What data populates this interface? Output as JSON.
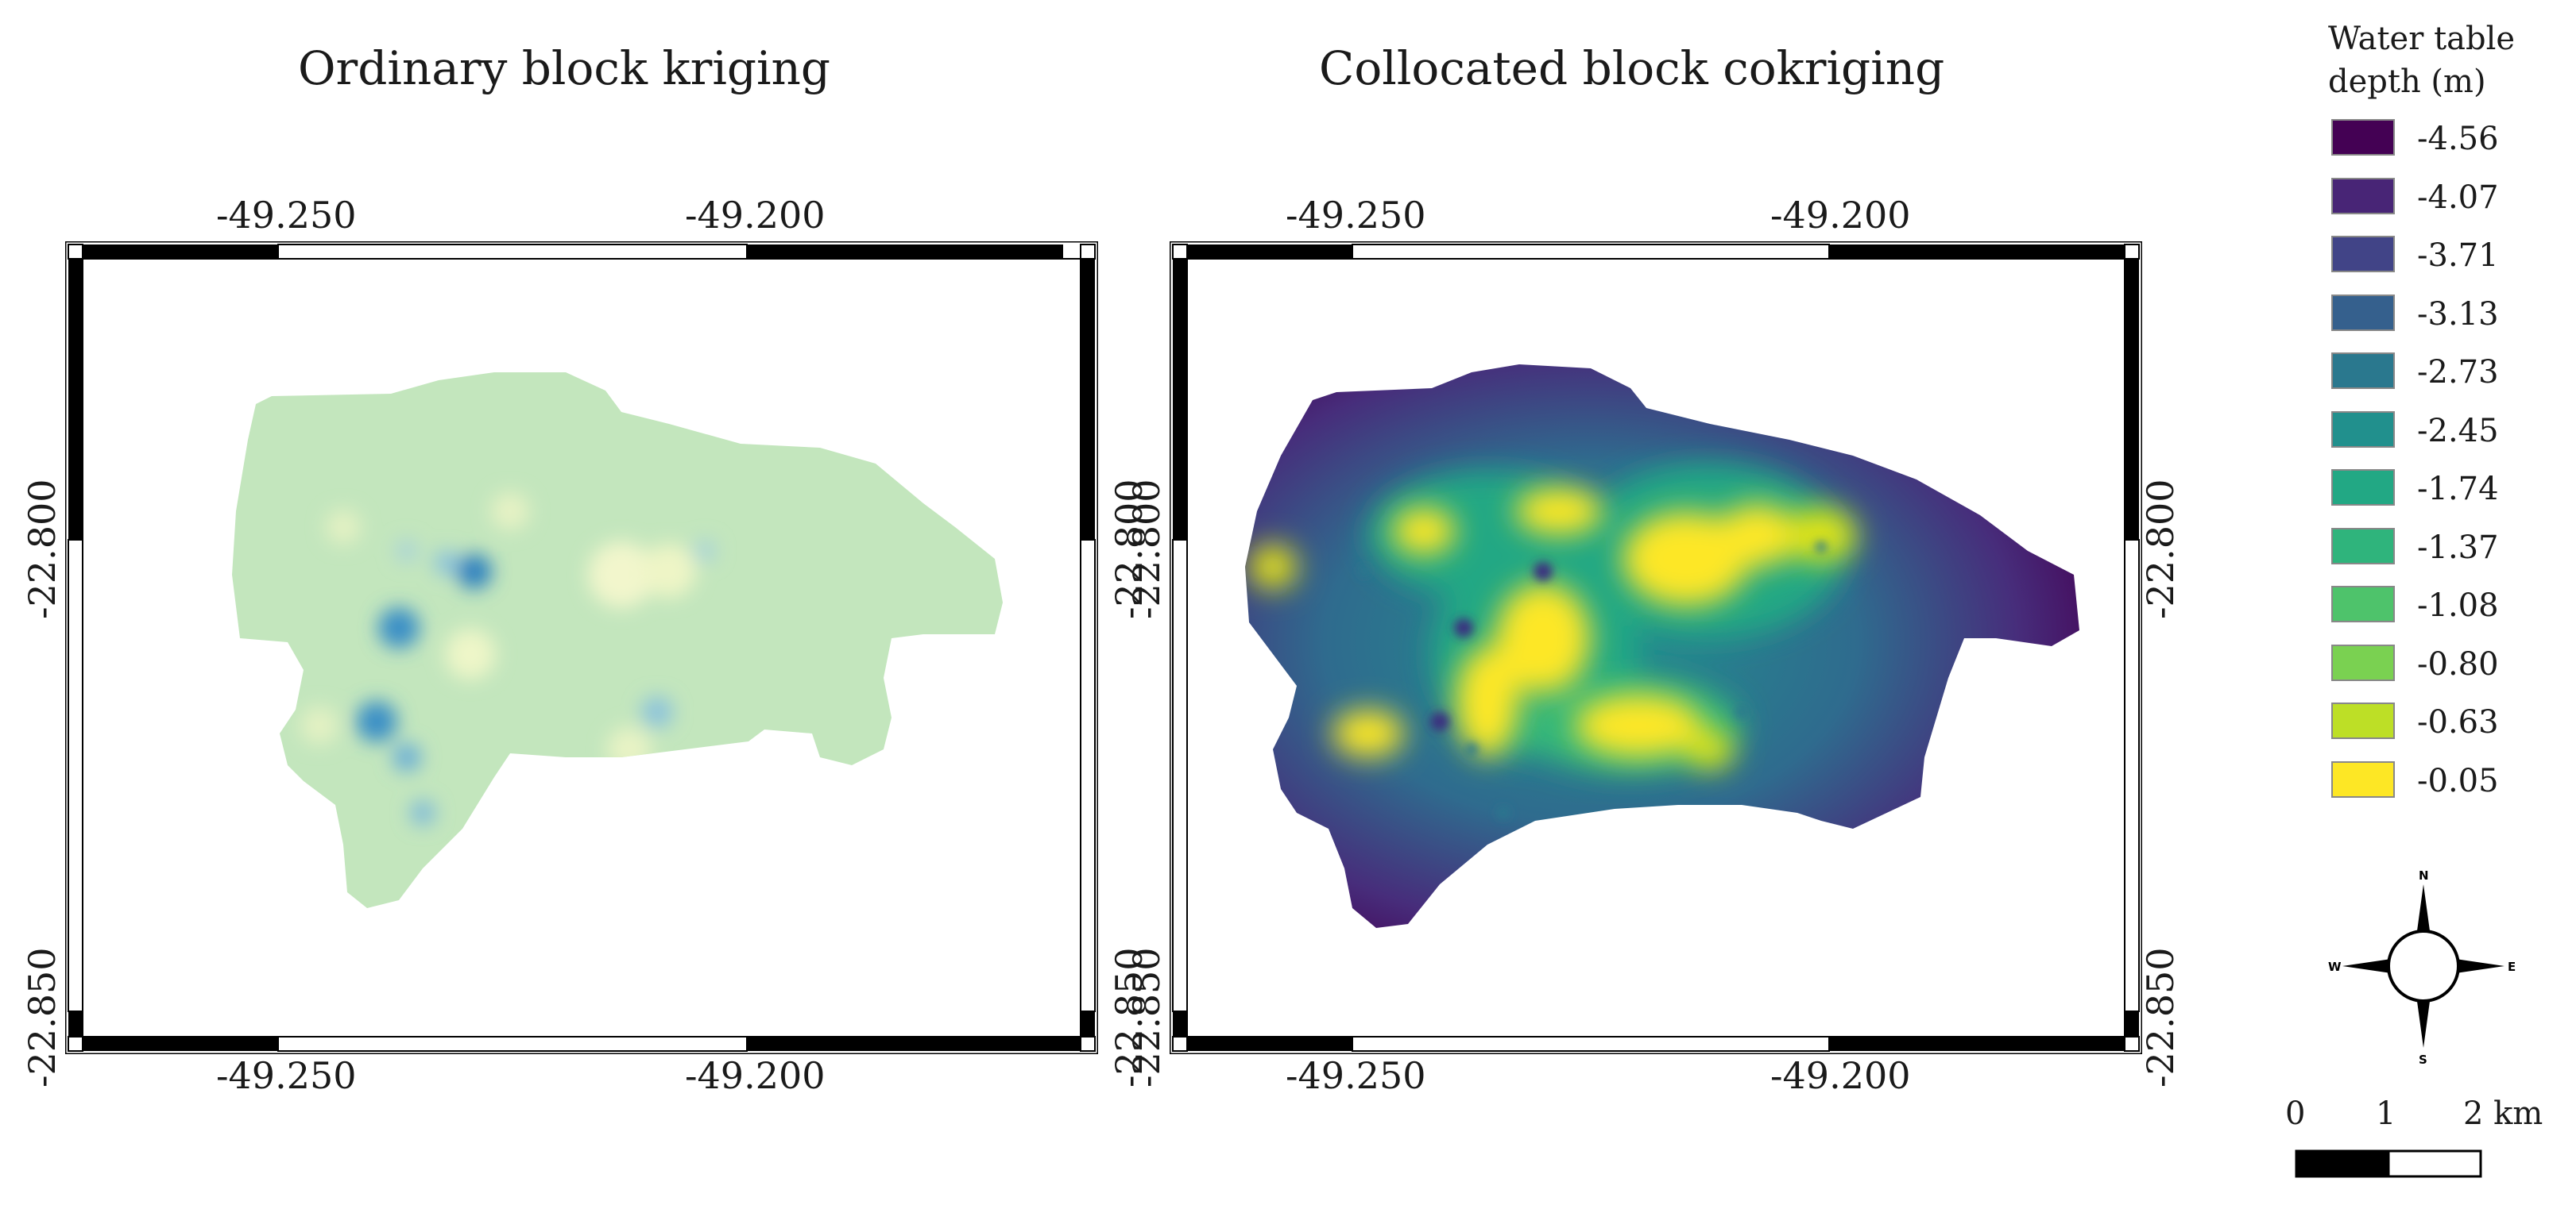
{
  "panels": [
    {
      "title": "Ordinary block kriging",
      "lon_ticks": [
        "-49.250",
        "-49.200"
      ],
      "lat_ticks": [
        "-22.800",
        "-22.850"
      ]
    },
    {
      "title": "Collocated block cokriging",
      "lon_ticks": [
        "-49.250",
        "-49.200"
      ],
      "lat_ticks": [
        "-22.800",
        "-22.850"
      ]
    }
  ],
  "legend": {
    "title_line1": "Water table",
    "title_line2": "depth (m)",
    "items": [
      {
        "label": "-4.56",
        "color": "#440154"
      },
      {
        "label": "-4.07",
        "color": "#482576"
      },
      {
        "label": "-3.71",
        "color": "#414487"
      },
      {
        "label": "-3.13",
        "color": "#35608d"
      },
      {
        "label": "-2.73",
        "color": "#2a788e"
      },
      {
        "label": "-2.45",
        "color": "#21908d"
      },
      {
        "label": "-1.74",
        "color": "#22a884"
      },
      {
        "label": "-1.37",
        "color": "#2fb47c"
      },
      {
        "label": "-1.08",
        "color": "#4ec36b"
      },
      {
        "label": "-0.80",
        "color": "#7ad151"
      },
      {
        "label": "-0.63",
        "color": "#bddf26"
      },
      {
        "label": "-0.05",
        "color": "#fde725"
      }
    ]
  },
  "north_arrow": {
    "n": "N",
    "s": "S",
    "e": "E",
    "w": "W"
  },
  "scale_bar": {
    "labels": [
      "0",
      "1",
      "2 km"
    ]
  }
}
